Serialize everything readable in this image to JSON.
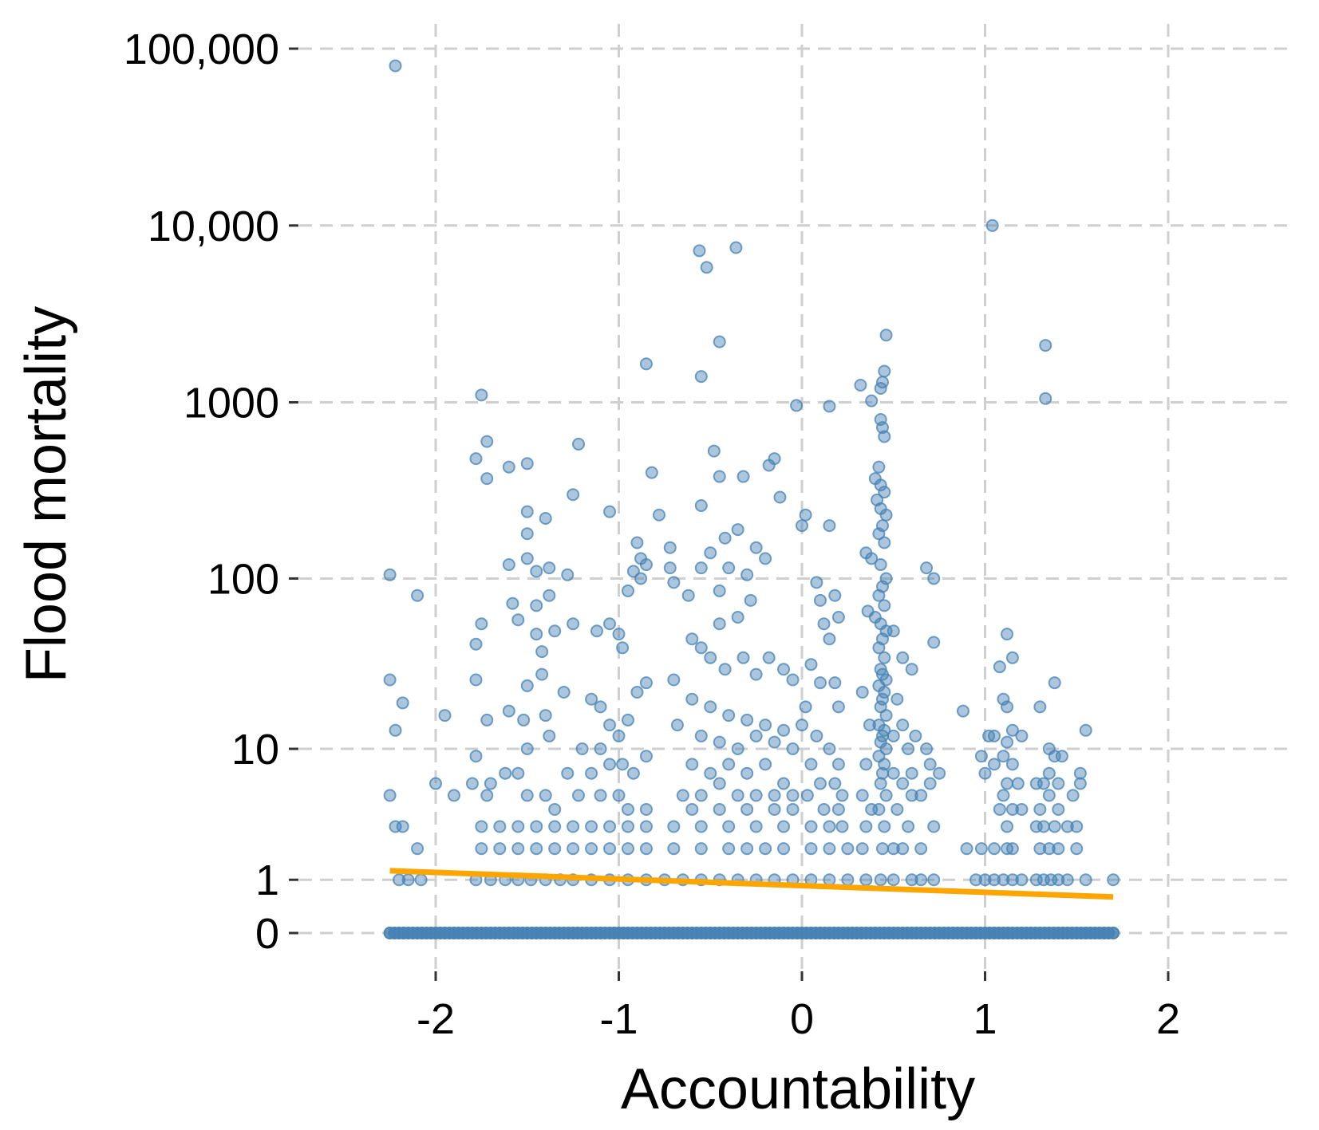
{
  "chart_data": {
    "type": "scatter",
    "title": "",
    "xlabel": "Accountability",
    "ylabel": "Flood mortality",
    "y_scale": "pseudo-log (log10(y+1) spacing)",
    "xlim": [
      -2.8,
      2.8
    ],
    "x_ticks": [
      -2,
      -1,
      0,
      1,
      2
    ],
    "x_tick_labels": [
      "-2",
      "-1",
      "0",
      "1",
      "2"
    ],
    "y_ticks": [
      0,
      1,
      10,
      100,
      1000,
      10000,
      100000
    ],
    "y_tick_labels": [
      "0",
      "1",
      "10",
      "100",
      "1000",
      "10,000",
      "100,000"
    ],
    "grid": true,
    "point_color": "#4682B4",
    "point_opacity": 0.45,
    "trend_color": "#FFA500",
    "trend_line": {
      "x": [
        -2.25,
        1.7
      ],
      "y": [
        1.25,
        0.6
      ]
    },
    "points": [
      [
        -2.22,
        80000
      ],
      [
        -2.25,
        105
      ],
      [
        -2.25,
        26
      ],
      [
        -2.22,
        13
      ],
      [
        -2.18,
        19
      ],
      [
        -2.25,
        5
      ],
      [
        -2.22,
        3
      ],
      [
        -2.18,
        3
      ],
      [
        -2.1,
        2
      ],
      [
        -2.1,
        80
      ],
      [
        -2.0,
        6
      ],
      [
        -1.95,
        16
      ],
      [
        -1.9,
        5
      ],
      [
        -2.2,
        1
      ],
      [
        -2.15,
        1
      ],
      [
        -2.08,
        1
      ],
      [
        -1.75,
        1100
      ],
      [
        -1.72,
        600
      ],
      [
        -1.78,
        480
      ],
      [
        -1.72,
        370
      ],
      [
        -1.6,
        430
      ],
      [
        -1.5,
        450
      ],
      [
        -1.5,
        240
      ],
      [
        -1.4,
        220
      ],
      [
        -1.5,
        180
      ],
      [
        -1.6,
        120
      ],
      [
        -1.5,
        130
      ],
      [
        -1.45,
        110
      ],
      [
        -1.38,
        115
      ],
      [
        -1.28,
        105
      ],
      [
        -1.58,
        72
      ],
      [
        -1.55,
        58
      ],
      [
        -1.45,
        70
      ],
      [
        -1.38,
        80
      ],
      [
        -1.45,
        48
      ],
      [
        -1.35,
        50
      ],
      [
        -1.42,
        38
      ],
      [
        -1.75,
        55
      ],
      [
        -1.78,
        42
      ],
      [
        -1.72,
        15
      ],
      [
        -1.78,
        26
      ],
      [
        -1.6,
        17
      ],
      [
        -1.52,
        15
      ],
      [
        -1.5,
        24
      ],
      [
        -1.4,
        16
      ],
      [
        -1.42,
        28
      ],
      [
        -1.3,
        22
      ],
      [
        -1.38,
        12
      ],
      [
        -1.5,
        10
      ],
      [
        -1.55,
        7
      ],
      [
        -1.62,
        7
      ],
      [
        -1.7,
        6
      ],
      [
        -1.78,
        9
      ],
      [
        -1.8,
        6
      ],
      [
        -1.72,
        5
      ],
      [
        -1.5,
        5
      ],
      [
        -1.4,
        5
      ],
      [
        -1.35,
        4
      ],
      [
        -1.28,
        7
      ],
      [
        -1.2,
        10
      ],
      [
        -1.15,
        7
      ],
      [
        -1.22,
        5
      ],
      [
        -1.75,
        3
      ],
      [
        -1.65,
        3
      ],
      [
        -1.55,
        3
      ],
      [
        -1.45,
        3
      ],
      [
        -1.35,
        3
      ],
      [
        -1.25,
        3
      ],
      [
        -1.75,
        2
      ],
      [
        -1.65,
        2
      ],
      [
        -1.55,
        2
      ],
      [
        -1.45,
        2
      ],
      [
        -1.35,
        2
      ],
      [
        -1.25,
        2
      ],
      [
        -1.78,
        1
      ],
      [
        -1.7,
        1
      ],
      [
        -1.62,
        1
      ],
      [
        -1.55,
        1
      ],
      [
        -1.48,
        1
      ],
      [
        -1.4,
        1
      ],
      [
        -1.32,
        1
      ],
      [
        -1.25,
        1
      ],
      [
        -1.22,
        580
      ],
      [
        -1.25,
        300
      ],
      [
        -1.05,
        240
      ],
      [
        -1.25,
        55
      ],
      [
        -1.12,
        50
      ],
      [
        -1.05,
        55
      ],
      [
        -1.0,
        48
      ],
      [
        -0.98,
        40
      ],
      [
        -0.95,
        85
      ],
      [
        -0.9,
        160
      ],
      [
        -0.88,
        130
      ],
      [
        -0.92,
        110
      ],
      [
        -0.85,
        120
      ],
      [
        -0.88,
        100
      ],
      [
        -0.85,
        1650
      ],
      [
        -0.82,
        400
      ],
      [
        -0.78,
        230
      ],
      [
        -1.15,
        20
      ],
      [
        -1.1,
        18
      ],
      [
        -1.05,
        14
      ],
      [
        -1.0,
        12
      ],
      [
        -0.95,
        15
      ],
      [
        -0.9,
        22
      ],
      [
        -0.85,
        25
      ],
      [
        -1.1,
        10
      ],
      [
        -1.05,
        8
      ],
      [
        -0.98,
        8
      ],
      [
        -0.92,
        7
      ],
      [
        -0.85,
        9
      ],
      [
        -1.1,
        5
      ],
      [
        -1.0,
        5
      ],
      [
        -0.95,
        4
      ],
      [
        -0.85,
        4
      ],
      [
        -1.15,
        3
      ],
      [
        -1.05,
        3
      ],
      [
        -0.95,
        3
      ],
      [
        -0.85,
        3
      ],
      [
        -1.15,
        2
      ],
      [
        -1.05,
        2
      ],
      [
        -0.95,
        2
      ],
      [
        -0.85,
        2
      ],
      [
        -1.15,
        1
      ],
      [
        -1.05,
        1
      ],
      [
        -0.95,
        1
      ],
      [
        -0.85,
        1
      ],
      [
        -0.56,
        7200
      ],
      [
        -0.52,
        5800
      ],
      [
        -0.36,
        7500
      ],
      [
        -0.45,
        2200
      ],
      [
        -0.55,
        1400
      ],
      [
        -0.48,
        530
      ],
      [
        -0.45,
        380
      ],
      [
        -0.32,
        380
      ],
      [
        -0.42,
        170
      ],
      [
        -0.55,
        260
      ],
      [
        -0.5,
        140
      ],
      [
        -0.35,
        190
      ],
      [
        -0.25,
        150
      ],
      [
        -0.2,
        130
      ],
      [
        -0.18,
        440
      ],
      [
        -0.15,
        480
      ],
      [
        -0.12,
        290
      ],
      [
        -0.72,
        150
      ],
      [
        -0.72,
        115
      ],
      [
        -0.7,
        95
      ],
      [
        -0.62,
        80
      ],
      [
        -0.55,
        115
      ],
      [
        -0.45,
        85
      ],
      [
        -0.4,
        115
      ],
      [
        -0.3,
        105
      ],
      [
        -0.28,
        75
      ],
      [
        -0.45,
        55
      ],
      [
        -0.35,
        60
      ],
      [
        -0.6,
        45
      ],
      [
        -0.55,
        40
      ],
      [
        -0.5,
        35
      ],
      [
        -0.42,
        30
      ],
      [
        -0.32,
        35
      ],
      [
        -0.25,
        28
      ],
      [
        -0.18,
        35
      ],
      [
        -0.1,
        30
      ],
      [
        -0.05,
        26
      ],
      [
        -0.7,
        26
      ],
      [
        -0.6,
        20
      ],
      [
        -0.5,
        18
      ],
      [
        -0.4,
        16
      ],
      [
        -0.3,
        15
      ],
      [
        -0.2,
        14
      ],
      [
        -0.1,
        13
      ],
      [
        -0.68,
        14
      ],
      [
        -0.55,
        12
      ],
      [
        -0.45,
        11
      ],
      [
        -0.35,
        10
      ],
      [
        -0.25,
        12
      ],
      [
        -0.15,
        11
      ],
      [
        -0.05,
        10
      ],
      [
        -0.6,
        8
      ],
      [
        -0.5,
        7
      ],
      [
        -0.4,
        8
      ],
      [
        -0.3,
        7
      ],
      [
        -0.2,
        8
      ],
      [
        -0.1,
        6
      ],
      [
        -0.65,
        5
      ],
      [
        -0.55,
        5
      ],
      [
        -0.45,
        6
      ],
      [
        -0.35,
        5
      ],
      [
        -0.25,
        5
      ],
      [
        -0.15,
        5
      ],
      [
        -0.05,
        5
      ],
      [
        -0.6,
        4
      ],
      [
        -0.45,
        4
      ],
      [
        -0.3,
        4
      ],
      [
        -0.15,
        4
      ],
      [
        -0.05,
        4
      ],
      [
        -0.7,
        3
      ],
      [
        -0.55,
        3
      ],
      [
        -0.4,
        3
      ],
      [
        -0.25,
        3
      ],
      [
        -0.1,
        3
      ],
      [
        -0.7,
        2
      ],
      [
        -0.55,
        2
      ],
      [
        -0.4,
        2
      ],
      [
        -0.3,
        2
      ],
      [
        -0.2,
        2
      ],
      [
        -0.1,
        2
      ],
      [
        -0.75,
        1
      ],
      [
        -0.65,
        1
      ],
      [
        -0.55,
        1
      ],
      [
        -0.45,
        1
      ],
      [
        -0.35,
        1
      ],
      [
        -0.25,
        1
      ],
      [
        -0.15,
        1
      ],
      [
        -0.05,
        1
      ],
      [
        -0.03,
        960
      ],
      [
        0.02,
        230
      ],
      [
        0.0,
        200
      ],
      [
        0.15,
        200
      ],
      [
        0.15,
        950
      ],
      [
        0.08,
        95
      ],
      [
        0.1,
        75
      ],
      [
        0.18,
        80
      ],
      [
        0.2,
        60
      ],
      [
        0.12,
        55
      ],
      [
        0.15,
        45
      ],
      [
        0.05,
        32
      ],
      [
        0.1,
        25
      ],
      [
        0.18,
        25
      ],
      [
        0.2,
        18
      ],
      [
        0.02,
        18
      ],
      [
        0.0,
        14
      ],
      [
        0.08,
        12
      ],
      [
        0.15,
        10
      ],
      [
        0.2,
        8
      ],
      [
        0.05,
        8
      ],
      [
        0.1,
        6
      ],
      [
        0.18,
        6
      ],
      [
        0.22,
        5
      ],
      [
        0.03,
        5
      ],
      [
        0.12,
        4
      ],
      [
        0.2,
        4
      ],
      [
        0.05,
        3
      ],
      [
        0.15,
        3
      ],
      [
        0.22,
        3
      ],
      [
        0.05,
        2
      ],
      [
        0.15,
        2
      ],
      [
        0.25,
        2
      ],
      [
        0.05,
        1
      ],
      [
        0.15,
        1
      ],
      [
        0.25,
        1
      ],
      [
        0.32,
        1250
      ],
      [
        0.38,
        1020
      ],
      [
        0.43,
        1200
      ],
      [
        0.44,
        1300
      ],
      [
        0.45,
        1500
      ],
      [
        0.46,
        2400
      ],
      [
        0.43,
        800
      ],
      [
        0.44,
        720
      ],
      [
        0.45,
        640
      ],
      [
        0.42,
        430
      ],
      [
        0.4,
        370
      ],
      [
        0.43,
        340
      ],
      [
        0.45,
        310
      ],
      [
        0.41,
        280
      ],
      [
        0.43,
        250
      ],
      [
        0.46,
        230
      ],
      [
        0.44,
        200
      ],
      [
        0.42,
        180
      ],
      [
        0.45,
        160
      ],
      [
        0.35,
        140
      ],
      [
        0.38,
        130
      ],
      [
        0.43,
        120
      ],
      [
        0.46,
        100
      ],
      [
        0.44,
        90
      ],
      [
        0.42,
        80
      ],
      [
        0.45,
        70
      ],
      [
        0.36,
        65
      ],
      [
        0.4,
        60
      ],
      [
        0.43,
        55
      ],
      [
        0.46,
        50
      ],
      [
        0.5,
        50
      ],
      [
        0.55,
        35
      ],
      [
        0.6,
        30
      ],
      [
        0.44,
        45
      ],
      [
        0.42,
        40
      ],
      [
        0.45,
        35
      ],
      [
        0.43,
        30
      ],
      [
        0.44,
        28
      ],
      [
        0.46,
        26
      ],
      [
        0.42,
        24
      ],
      [
        0.45,
        22
      ],
      [
        0.44,
        20
      ],
      [
        0.43,
        18
      ],
      [
        0.46,
        16
      ],
      [
        0.42,
        14
      ],
      [
        0.45,
        13
      ],
      [
        0.44,
        12
      ],
      [
        0.43,
        11
      ],
      [
        0.46,
        10
      ],
      [
        0.42,
        9
      ],
      [
        0.45,
        8
      ],
      [
        0.44,
        7
      ],
      [
        0.43,
        6
      ],
      [
        0.46,
        5
      ],
      [
        0.42,
        4
      ],
      [
        0.45,
        3
      ],
      [
        0.44,
        2
      ],
      [
        0.43,
        1
      ],
      [
        0.33,
        22
      ],
      [
        0.37,
        14
      ],
      [
        0.35,
        8
      ],
      [
        0.33,
        5
      ],
      [
        0.38,
        4
      ],
      [
        0.35,
        3
      ],
      [
        0.33,
        2
      ],
      [
        0.35,
        1
      ],
      [
        0.55,
        14
      ],
      [
        0.58,
        10
      ],
      [
        0.6,
        7
      ],
      [
        0.55,
        6
      ],
      [
        0.6,
        5
      ],
      [
        0.58,
        3
      ],
      [
        0.55,
        2
      ],
      [
        0.6,
        1
      ],
      [
        0.52,
        20
      ],
      [
        0.5,
        12
      ],
      [
        0.5,
        7
      ],
      [
        0.52,
        4
      ],
      [
        0.5,
        2
      ],
      [
        0.5,
        1
      ],
      [
        0.68,
        115
      ],
      [
        0.72,
        100
      ],
      [
        0.72,
        43
      ],
      [
        0.62,
        12
      ],
      [
        0.68,
        10
      ],
      [
        0.7,
        8
      ],
      [
        0.75,
        7
      ],
      [
        0.7,
        6
      ],
      [
        0.65,
        5
      ],
      [
        0.72,
        3
      ],
      [
        0.65,
        2
      ],
      [
        0.72,
        1
      ],
      [
        0.65,
        1
      ],
      [
        1.04,
        10000
      ],
      [
        0.88,
        17
      ],
      [
        1.02,
        12
      ],
      [
        1.05,
        12
      ],
      [
        0.98,
        9
      ],
      [
        1.05,
        8
      ],
      [
        1.0,
        7
      ],
      [
        1.08,
        31
      ],
      [
        1.12,
        48
      ],
      [
        1.15,
        35
      ],
      [
        1.1,
        20
      ],
      [
        1.12,
        18
      ],
      [
        1.15,
        13
      ],
      [
        1.12,
        11
      ],
      [
        1.1,
        9
      ],
      [
        1.15,
        8
      ],
      [
        1.12,
        6
      ],
      [
        1.1,
        5
      ],
      [
        1.15,
        4
      ],
      [
        1.08,
        4
      ],
      [
        1.12,
        3
      ],
      [
        1.15,
        2
      ],
      [
        1.2,
        12
      ],
      [
        1.18,
        6
      ],
      [
        1.2,
        4
      ],
      [
        0.9,
        2
      ],
      [
        0.98,
        2
      ],
      [
        1.05,
        2
      ],
      [
        1.12,
        2
      ],
      [
        0.95,
        1
      ],
      [
        1.0,
        1
      ],
      [
        1.05,
        1
      ],
      [
        1.1,
        1
      ],
      [
        1.15,
        1
      ],
      [
        1.2,
        1
      ],
      [
        1.33,
        2100
      ],
      [
        1.33,
        1050
      ],
      [
        1.38,
        25
      ],
      [
        1.3,
        18
      ],
      [
        1.35,
        10
      ],
      [
        1.38,
        9
      ],
      [
        1.42,
        9
      ],
      [
        1.35,
        7
      ],
      [
        1.4,
        6
      ],
      [
        1.32,
        6
      ],
      [
        1.28,
        6
      ],
      [
        1.35,
        5
      ],
      [
        1.4,
        4
      ],
      [
        1.3,
        4
      ],
      [
        1.38,
        3
      ],
      [
        1.32,
        3
      ],
      [
        1.28,
        3
      ],
      [
        1.35,
        2
      ],
      [
        1.4,
        2
      ],
      [
        1.3,
        2
      ],
      [
        1.5,
        2
      ],
      [
        1.55,
        13
      ],
      [
        1.52,
        7
      ],
      [
        1.52,
        6
      ],
      [
        1.48,
        5
      ],
      [
        1.45,
        3
      ],
      [
        1.5,
        3
      ],
      [
        1.28,
        1
      ],
      [
        1.32,
        1
      ],
      [
        1.36,
        1
      ],
      [
        1.4,
        1
      ],
      [
        1.45,
        1
      ],
      [
        1.55,
        1
      ],
      [
        1.7,
        1
      ]
    ]
  }
}
